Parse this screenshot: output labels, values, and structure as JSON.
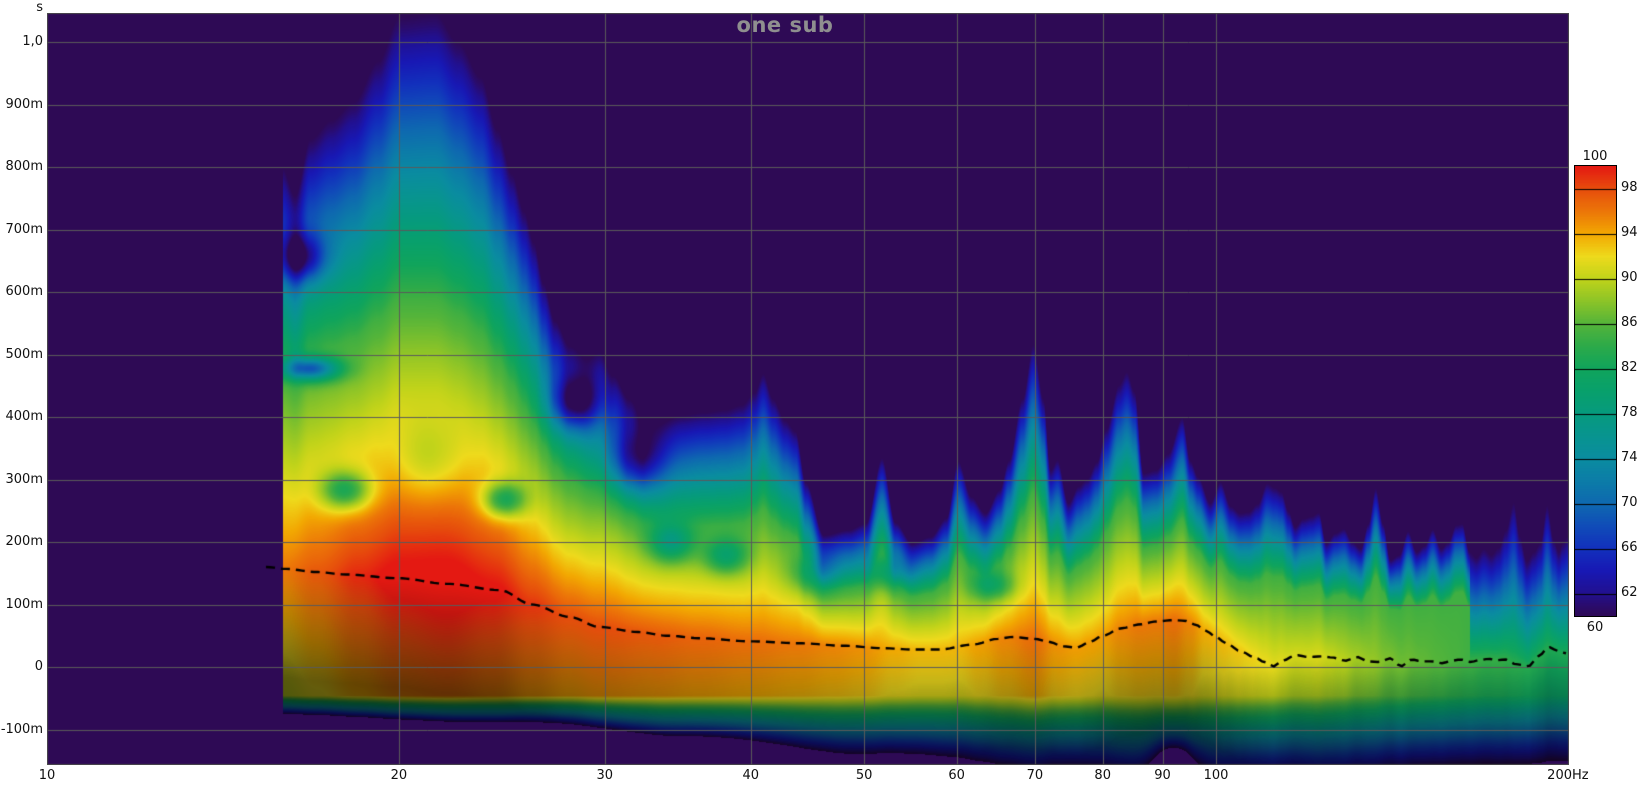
{
  "window": {
    "title": "one sub"
  },
  "chart_data": {
    "type": "heatmap",
    "subtype": "spectrogram-waterfall",
    "title": "one sub",
    "x_axis": {
      "scale": "log",
      "min_hz": 10,
      "max_hz": 200,
      "unit": "Hz",
      "ticks": [
        {
          "f": 10,
          "label": "10"
        },
        {
          "f": 20,
          "label": "20"
        },
        {
          "f": 30,
          "label": "30"
        },
        {
          "f": 40,
          "label": "40"
        },
        {
          "f": 50,
          "label": "50"
        },
        {
          "f": 60,
          "label": "60"
        },
        {
          "f": 70,
          "label": "70"
        },
        {
          "f": 80,
          "label": "80"
        },
        {
          "f": 90,
          "label": "90"
        },
        {
          "f": 100,
          "label": "100"
        },
        {
          "f": 200,
          "label": "200Hz"
        }
      ],
      "gridline_freqs": [
        20,
        30,
        40,
        50,
        60,
        70,
        80,
        90,
        100
      ]
    },
    "y_axis": {
      "unit_label": "s",
      "min_s": -0.157,
      "max_s": 1.046,
      "ticks": [
        {
          "ms": 1000,
          "label": "1,0"
        },
        {
          "ms": 900,
          "label": "900m"
        },
        {
          "ms": 800,
          "label": "800m"
        },
        {
          "ms": 700,
          "label": "700m"
        },
        {
          "ms": 600,
          "label": "600m"
        },
        {
          "ms": 500,
          "label": "500m"
        },
        {
          "ms": 400,
          "label": "400m"
        },
        {
          "ms": 300,
          "label": "300m"
        },
        {
          "ms": 200,
          "label": "200m"
        },
        {
          "ms": 100,
          "label": "100m"
        },
        {
          "ms": 0,
          "label": "0"
        },
        {
          "ms": -100,
          "label": "-100m"
        }
      ]
    },
    "colorbar": {
      "min_db": 60,
      "max_db": 100,
      "top_label": "100",
      "bottom_label": "60",
      "side_ticks": [
        {
          "db": 98,
          "label": "98"
        },
        {
          "db": 94,
          "label": "94"
        },
        {
          "db": 90,
          "label": "90"
        },
        {
          "db": 86,
          "label": "86"
        },
        {
          "db": 82,
          "label": "82"
        },
        {
          "db": 78,
          "label": "78"
        },
        {
          "db": 74,
          "label": "74"
        },
        {
          "db": 70,
          "label": "70"
        },
        {
          "db": 66,
          "label": "66"
        },
        {
          "db": 62,
          "label": "62"
        }
      ],
      "anchors": [
        [
          60,
          "#2e0a55"
        ],
        [
          61,
          "#2a0c6e"
        ],
        [
          62,
          "#22108e"
        ],
        [
          64,
          "#1818b4"
        ],
        [
          66,
          "#1230bc"
        ],
        [
          68,
          "#104cb8"
        ],
        [
          70,
          "#0e68b0"
        ],
        [
          72,
          "#0c7ca8"
        ],
        [
          74,
          "#0a8ca0"
        ],
        [
          76,
          "#089490"
        ],
        [
          78,
          "#069a7e"
        ],
        [
          80,
          "#08a06c"
        ],
        [
          82,
          "#10a45c"
        ],
        [
          84,
          "#2caa4a"
        ],
        [
          86,
          "#54b43a"
        ],
        [
          88,
          "#8cc428"
        ],
        [
          90,
          "#c0d31a"
        ],
        [
          92,
          "#eeda1c"
        ],
        [
          94,
          "#f2a802"
        ],
        [
          96,
          "#ec7608"
        ],
        [
          98,
          "#e64d0c"
        ],
        [
          100,
          "#e41912"
        ]
      ]
    },
    "gridline_color": "#5a5a5a",
    "plot_border_color": "#4a4a4a",
    "background_color": "#2e0a55",
    "overlay_line": {
      "style": "dashed",
      "color": "#000000",
      "meaning": "time of peak energy vs frequency"
    },
    "spectrogram": {
      "start_freq_hz": 15.9,
      "peak_level_db": [
        [
          15.9,
          96
        ],
        [
          17,
          97.5
        ],
        [
          18.5,
          99.5
        ],
        [
          20,
          101
        ],
        [
          22,
          101.5
        ],
        [
          24,
          100.5
        ],
        [
          26,
          99
        ],
        [
          28,
          98
        ],
        [
          30,
          98
        ],
        [
          33,
          97.5
        ],
        [
          36,
          97
        ],
        [
          40,
          96.5
        ],
        [
          44,
          96
        ],
        [
          47,
          95.5
        ],
        [
          50,
          95
        ],
        [
          53,
          94
        ],
        [
          56,
          93.5
        ],
        [
          60,
          93.5
        ],
        [
          63,
          94.5
        ],
        [
          66,
          95.5
        ],
        [
          70,
          96.5
        ],
        [
          73,
          95
        ],
        [
          76,
          94.5
        ],
        [
          80,
          94.5
        ],
        [
          83,
          95.5
        ],
        [
          86,
          96
        ],
        [
          89,
          96
        ],
        [
          92,
          96.5
        ],
        [
          95,
          95.5
        ],
        [
          98,
          94
        ],
        [
          101,
          93.5
        ],
        [
          104,
          93
        ],
        [
          107,
          92.5
        ],
        [
          110,
          92
        ],
        [
          113,
          91.5
        ],
        [
          116,
          91
        ],
        [
          120,
          91
        ],
        [
          122,
          91.2
        ],
        [
          125,
          90.5
        ],
        [
          128,
          90
        ],
        [
          132,
          89
        ],
        [
          136,
          88.5
        ],
        [
          140,
          87.5
        ],
        [
          145,
          87
        ],
        [
          150,
          86.5
        ],
        [
          155,
          86
        ],
        [
          160,
          85.5
        ],
        [
          165,
          85
        ],
        [
          170,
          84.5
        ],
        [
          175,
          84.5
        ],
        [
          180,
          84
        ],
        [
          185,
          83.5
        ],
        [
          190,
          83.5
        ],
        [
          195,
          83
        ],
        [
          200,
          83
        ]
      ],
      "peak_time_ms": [
        [
          15.4,
          160
        ],
        [
          16,
          157
        ],
        [
          17,
          152
        ],
        [
          18,
          148
        ],
        [
          20,
          142
        ],
        [
          22,
          133
        ],
        [
          24.4,
          123
        ],
        [
          26,
          100
        ],
        [
          28,
          80
        ],
        [
          29.7,
          64
        ],
        [
          32,
          56
        ],
        [
          34,
          50
        ],
        [
          36.2,
          46
        ],
        [
          40,
          41
        ],
        [
          44.1,
          38
        ],
        [
          48,
          34
        ],
        [
          52,
          30
        ],
        [
          55,
          28
        ],
        [
          58,
          28
        ],
        [
          62,
          36
        ],
        [
          65,
          45
        ],
        [
          67,
          48
        ],
        [
          70,
          45
        ],
        [
          72,
          40
        ],
        [
          74,
          33
        ],
        [
          76,
          31
        ],
        [
          78,
          40
        ],
        [
          80,
          50
        ],
        [
          83,
          62
        ],
        [
          86,
          68
        ],
        [
          89,
          73
        ],
        [
          92,
          75
        ],
        [
          94,
          74
        ],
        [
          96,
          68
        ],
        [
          98,
          58
        ],
        [
          100,
          48
        ],
        [
          102,
          38
        ],
        [
          105,
          25
        ],
        [
          108,
          15
        ],
        [
          110,
          8
        ],
        [
          112,
          1
        ],
        [
          114,
          10
        ],
        [
          117,
          19
        ],
        [
          120,
          16
        ],
        [
          123,
          17
        ],
        [
          126,
          15
        ],
        [
          129,
          10
        ],
        [
          132,
          16
        ],
        [
          135,
          9
        ],
        [
          138,
          8
        ],
        [
          141,
          14
        ],
        [
          144,
          1
        ],
        [
          147,
          12
        ],
        [
          150,
          9
        ],
        [
          153,
          9
        ],
        [
          156,
          6
        ],
        [
          159,
          10
        ],
        [
          162,
          12
        ],
        [
          165,
          8
        ],
        [
          168,
          11
        ],
        [
          171,
          13
        ],
        [
          174,
          11
        ],
        [
          177,
          12
        ],
        [
          180,
          5
        ],
        [
          183,
          3
        ],
        [
          185,
          0
        ],
        [
          187,
          10
        ],
        [
          189.5,
          20
        ],
        [
          192.5,
          32
        ],
        [
          195,
          28
        ],
        [
          197,
          24
        ],
        [
          199,
          22
        ]
      ],
      "decay_to_60db_ms": [
        [
          15.9,
          800
        ],
        [
          16.3,
          755
        ],
        [
          16.8,
          845
        ],
        [
          17.5,
          875
        ],
        [
          18.3,
          905
        ],
        [
          19.2,
          970
        ],
        [
          20,
          1040
        ],
        [
          21.5,
          1046
        ],
        [
          22.5,
          1000
        ],
        [
          23.5,
          945
        ],
        [
          24.3,
          860
        ],
        [
          25,
          790
        ],
        [
          25.6,
          730
        ],
        [
          26.1,
          680
        ],
        [
          26.6,
          615
        ],
        [
          27.2,
          555
        ],
        [
          28,
          515
        ],
        [
          29,
          498
        ],
        [
          29.7,
          505
        ],
        [
          30.5,
          470
        ],
        [
          31.5,
          432
        ],
        [
          32.5,
          402
        ],
        [
          33.5,
          398
        ],
        [
          35,
          404
        ],
        [
          36.5,
          408
        ],
        [
          38,
          412
        ],
        [
          39.3,
          420
        ],
        [
          40.3,
          440
        ],
        [
          41,
          470
        ],
        [
          41.8,
          430
        ],
        [
          42.8,
          396
        ],
        [
          43.7,
          378
        ],
        [
          44.6,
          296
        ],
        [
          46.2,
          212
        ],
        [
          48.5,
          220
        ],
        [
          50.2,
          231
        ],
        [
          51.8,
          335
        ],
        [
          53.2,
          232
        ],
        [
          55,
          199
        ],
        [
          57,
          209
        ],
        [
          58.8,
          239
        ],
        [
          60.2,
          330
        ],
        [
          61.8,
          273
        ],
        [
          63.5,
          247
        ],
        [
          65.3,
          284
        ],
        [
          66.5,
          331
        ],
        [
          68.3,
          430
        ],
        [
          69.8,
          517
        ],
        [
          71.2,
          430
        ],
        [
          72.2,
          316
        ],
        [
          73.2,
          332
        ],
        [
          74.8,
          263
        ],
        [
          76.3,
          290
        ],
        [
          77.6,
          302
        ],
        [
          79.1,
          329
        ],
        [
          80.6,
          382
        ],
        [
          82.6,
          452
        ],
        [
          83.9,
          473
        ],
        [
          85.2,
          442
        ],
        [
          86.7,
          311
        ],
        [
          88.9,
          316
        ],
        [
          91,
          342
        ],
        [
          93.6,
          400
        ],
        [
          95.1,
          331
        ],
        [
          96.6,
          305
        ],
        [
          98.9,
          263
        ],
        [
          100.9,
          297
        ],
        [
          103,
          258
        ],
        [
          104.9,
          247
        ],
        [
          106.6,
          249
        ],
        [
          108.6,
          262
        ],
        [
          110.6,
          295
        ],
        [
          112.3,
          288
        ],
        [
          113.8,
          281
        ],
        [
          115.4,
          250
        ],
        [
          116.9,
          225
        ],
        [
          118.7,
          238
        ],
        [
          120.7,
          242
        ],
        [
          122.5,
          248
        ],
        [
          124.3,
          199
        ],
        [
          126.5,
          215
        ],
        [
          128.7,
          222
        ],
        [
          130.8,
          201
        ],
        [
          133,
          190
        ],
        [
          135,
          230
        ],
        [
          137,
          287
        ],
        [
          139,
          230
        ],
        [
          141,
          172
        ],
        [
          143.5,
          180
        ],
        [
          146,
          218
        ],
        [
          148.5,
          185
        ],
        [
          150.8,
          195
        ],
        [
          153.3,
          221
        ],
        [
          155.8,
          190
        ],
        [
          158,
          200
        ],
        [
          160.5,
          228
        ],
        [
          162.5,
          230
        ],
        [
          164.8,
          185
        ],
        [
          167,
          176
        ],
        [
          169.5,
          190
        ],
        [
          172,
          180
        ],
        [
          174.5,
          192
        ],
        [
          177,
          220
        ],
        [
          179.8,
          264
        ],
        [
          182,
          210
        ],
        [
          184.5,
          170
        ],
        [
          187,
          185
        ],
        [
          189.5,
          200
        ],
        [
          192,
          260
        ],
        [
          194.5,
          205
        ],
        [
          196.5,
          185
        ],
        [
          198,
          200
        ],
        [
          200,
          210
        ]
      ],
      "decay_mid_level_db": 85,
      "decay_mid_fraction": 0.5,
      "onset": {
        "early_rise_db_per_ms": 0.03,
        "cliff_start_ms": -45,
        "cliff_rate_db_per_ms": [
          [
            16,
            1.0
          ],
          [
            25,
            0.8
          ],
          [
            35,
            0.5
          ],
          [
            50,
            0.32
          ],
          [
            70,
            0.26
          ],
          [
            100,
            0.22
          ],
          [
            140,
            0.19
          ],
          [
            200,
            0.17
          ]
        ],
        "shade_floor": 0.42,
        "shade_slope_per_ms": 0.00333
      },
      "notches": [
        [
          16.5,
          655,
          13,
          1.035,
          28
        ],
        [
          16.8,
          478,
          17,
          1.04,
          13
        ],
        [
          18,
          283,
          11,
          1.035,
          22
        ],
        [
          21.2,
          330,
          4,
          1.05,
          45
        ],
        [
          24.6,
          268,
          11,
          1.03,
          20
        ],
        [
          28.3,
          423,
          12,
          1.035,
          30
        ],
        [
          31.8,
          330,
          11,
          1.04,
          38
        ],
        [
          34.2,
          200,
          9,
          1.03,
          22
        ],
        [
          38.1,
          178,
          8,
          1.03,
          20
        ],
        [
          45.4,
          150,
          6,
          1.035,
          22
        ],
        [
          52.4,
          152,
          6,
          1.03,
          18
        ],
        [
          64.5,
          130,
          6,
          1.03,
          16
        ],
        [
          92,
          -160,
          16,
          1.03,
          40
        ]
      ]
    }
  }
}
